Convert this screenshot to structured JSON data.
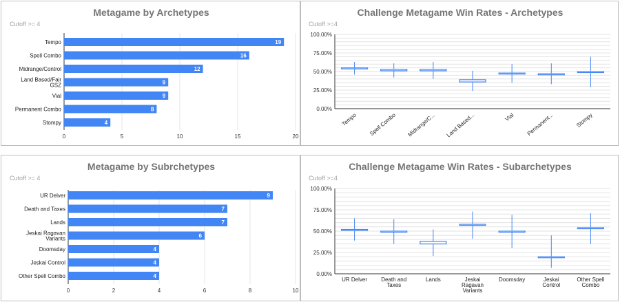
{
  "chart_data": [
    {
      "type": "bar",
      "title": "Metagame by Archetypes",
      "subtitle": "Cutoff >= 4",
      "orientation": "horizontal",
      "categories": [
        "Tempo",
        "Spell Combo",
        "Midrange/Control",
        "Land Based/Fair GSZ",
        "Vial",
        "Permanent Combo",
        "Stompy"
      ],
      "values": [
        19,
        16,
        12,
        9,
        9,
        8,
        4
      ],
      "data_labels": true,
      "xlim": [
        0,
        20
      ],
      "xticks": [
        0,
        5,
        10,
        15,
        20
      ],
      "grid": true,
      "bar_color": "#4285f4"
    },
    {
      "type": "candlestick",
      "title": "Challenge Metagame Win Rates - Archetypes",
      "subtitle": "Cutoff >=4",
      "categories": [
        "Tempo",
        "Spell Combo",
        "Midrange/C...",
        "Land Based...",
        "Vial",
        "Permanent...",
        "Stompy"
      ],
      "low": [
        0.46,
        0.42,
        0.4,
        0.24,
        0.35,
        0.33,
        0.29
      ],
      "open": [
        0.54,
        0.51,
        0.51,
        0.36,
        0.47,
        0.46,
        0.5
      ],
      "close": [
        0.55,
        0.53,
        0.53,
        0.39,
        0.48,
        0.47,
        0.5
      ],
      "high": [
        0.63,
        0.61,
        0.63,
        0.51,
        0.6,
        0.61,
        0.7
      ],
      "ylim": [
        0,
        1
      ],
      "yticks": [
        "0.00%",
        "25.00%",
        "50.00%",
        "75.00%",
        "100.00%"
      ],
      "tick_labels_rotated": true,
      "grid": true,
      "color": "#4285f4"
    },
    {
      "type": "bar",
      "title": "Metagame by Subrchetypes",
      "subtitle": "Cutoff >= 4",
      "orientation": "horizontal",
      "categories": [
        "UR Delver",
        "Death and Taxes",
        "Lands",
        "Jeskai Ragavan Variants",
        "Doomsday",
        "Jeskai Control",
        "Other Spell Combo"
      ],
      "values": [
        9,
        7,
        7,
        6,
        4,
        4,
        4
      ],
      "data_labels": true,
      "xlim": [
        0,
        10
      ],
      "xticks": [
        0,
        2,
        4,
        6,
        8,
        10
      ],
      "grid": true,
      "bar_color": "#4285f4"
    },
    {
      "type": "candlestick",
      "title": "Challenge Metagame Win Rates - Subarchetypes",
      "subtitle": "Cutoff >=4",
      "categories": [
        "UR Delver",
        "Death and Taxes",
        "Lands",
        "Jeskai Ragavan Variants",
        "Doomsday",
        "Jeskai Control",
        "Other Spell Combo"
      ],
      "low": [
        0.39,
        0.35,
        0.21,
        0.41,
        0.3,
        0.07,
        0.35
      ],
      "open": [
        0.51,
        0.49,
        0.35,
        0.57,
        0.49,
        0.2,
        0.53
      ],
      "close": [
        0.52,
        0.5,
        0.38,
        0.58,
        0.5,
        0.2,
        0.54
      ],
      "high": [
        0.65,
        0.64,
        0.52,
        0.73,
        0.69,
        0.45,
        0.71
      ],
      "ylim": [
        0,
        1
      ],
      "yticks": [
        "0.00%",
        "25.00%",
        "50.00%",
        "75.00%",
        "100.00%"
      ],
      "tick_labels_rotated": false,
      "grid": true,
      "color": "#4285f4"
    }
  ]
}
